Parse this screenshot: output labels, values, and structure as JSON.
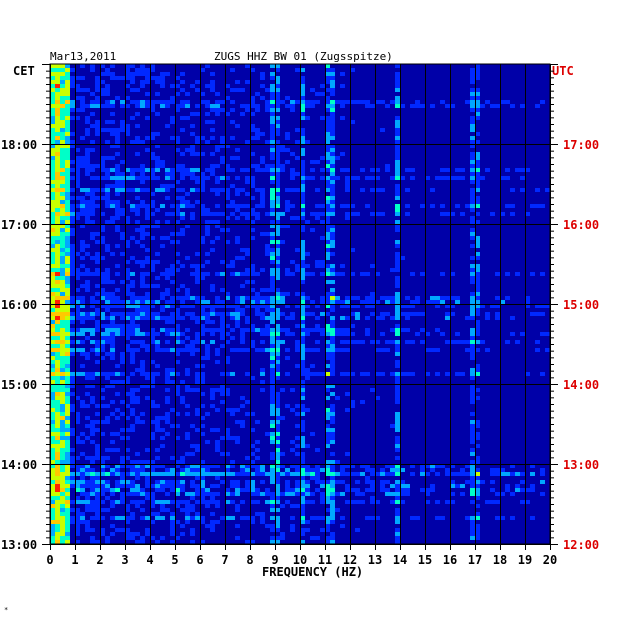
{
  "header": {
    "date": "Mar13,2011",
    "station": "ZUGS HHZ BW 01 (Zugsspitze)",
    "left_zone": "CET",
    "right_zone": "UTC"
  },
  "footer_mark": "*",
  "colors": {
    "background": "#0000a8",
    "grid": "#000000",
    "utc_text": "#dd0000",
    "palette": [
      "#0000a8",
      "#0028ff",
      "#00a8ff",
      "#00ffc8",
      "#c8ff00",
      "#ffc800",
      "#ff2000"
    ]
  },
  "chart_data": {
    "type": "heatmap",
    "title": "ZUGS HHZ BW 01 (Zugsspitze)",
    "xlabel": "FREQUENCY (HZ)",
    "x_ticks": [
      "0",
      "1",
      "2",
      "3",
      "4",
      "5",
      "6",
      "7",
      "8",
      "9",
      "10",
      "11",
      "12",
      "13",
      "14",
      "15",
      "16",
      "17",
      "18",
      "19",
      "20"
    ],
    "xlim": [
      0,
      20
    ],
    "left_ticks": [
      "13:00",
      "14:00",
      "15:00",
      "16:00",
      "17:00",
      "18:00"
    ],
    "right_ticks": [
      "12:00",
      "13:00",
      "14:00",
      "15:00",
      "16:00",
      "17:00"
    ],
    "ylim_hours_cet": [
      13,
      19
    ],
    "grid": true,
    "spectral_lines_hz": [
      0.3,
      9.0,
      10.1,
      11.2,
      13.9,
      17.0
    ],
    "noise_bursts_cet": [
      "13:40",
      "13:47",
      "13:55",
      "14:00",
      "15:53",
      "16:05"
    ]
  }
}
